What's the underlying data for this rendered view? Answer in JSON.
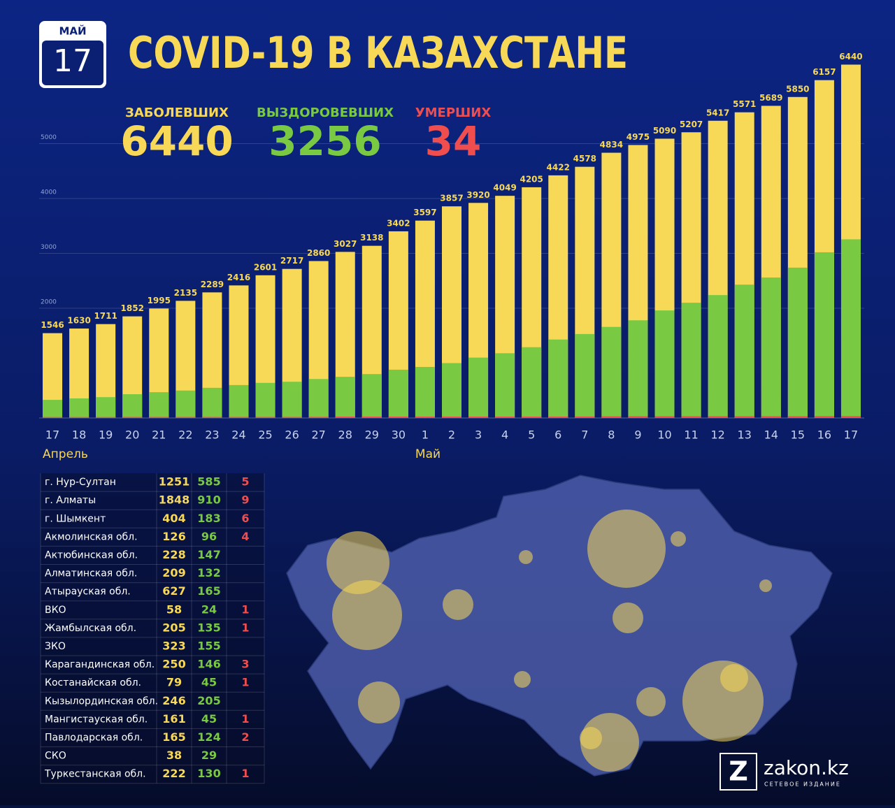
{
  "badge": {
    "month": "МАЙ",
    "day": "17"
  },
  "chart_data": {
    "type": "bar",
    "bar_mode": "overlap",
    "title": "COVID-19 В КАЗАХСТАНЕ",
    "categories": [
      "17",
      "18",
      "19",
      "20",
      "21",
      "22",
      "23",
      "24",
      "25",
      "26",
      "27",
      "28",
      "29",
      "30",
      "1",
      "2",
      "3",
      "4",
      "5",
      "6",
      "7",
      "8",
      "9",
      "10",
      "11",
      "12",
      "13",
      "14",
      "15",
      "16",
      "17"
    ],
    "month_labels": [
      "Апрель",
      "Май"
    ],
    "series": [
      {
        "name": "ЗАБОЛЕВШИХ",
        "color": "#f8d857",
        "data_labels": true,
        "values": [
          1546,
          1630,
          1711,
          1852,
          1995,
          2135,
          2289,
          2416,
          2601,
          2717,
          2860,
          3027,
          3138,
          3402,
          3597,
          3857,
          3920,
          4049,
          4205,
          4422,
          4578,
          4834,
          4975,
          5090,
          5207,
          5417,
          5571,
          5689,
          5850,
          6157,
          6440
        ]
      },
      {
        "name": "ВЫЗДОРОВЕВШИХ",
        "color": "#7ac943",
        "values": [
          330,
          357,
          380,
          433,
          470,
          500,
          550,
          600,
          640,
          660,
          710,
          750,
          800,
          880,
          930,
          1000,
          1100,
          1180,
          1290,
          1430,
          1530,
          1660,
          1780,
          1960,
          2100,
          2240,
          2430,
          2560,
          2740,
          3020,
          3256
        ]
      },
      {
        "name": "УМЕРШИХ",
        "color": "#f04e4e",
        "values": [
          17,
          17,
          17,
          19,
          19,
          19,
          19,
          19,
          19,
          19,
          21,
          25,
          25,
          25,
          25,
          25,
          25,
          25,
          25,
          25,
          27,
          30,
          31,
          31,
          31,
          31,
          32,
          32,
          32,
          34,
          34
        ]
      }
    ],
    "ylim": [
      0,
      7000
    ],
    "yticks": [
      2000,
      3000,
      4000,
      5000
    ],
    "grid": true
  },
  "table": {
    "rows": [
      [
        "г. Нур-Султан",
        1251,
        585,
        5
      ],
      [
        "г. Алматы",
        1848,
        910,
        9
      ],
      [
        "г. Шымкент",
        404,
        183,
        6
      ],
      [
        "Акмолинская обл.",
        126,
        96,
        4
      ],
      [
        "Актюбинская обл.",
        228,
        147,
        null
      ],
      [
        "Алматинская обл.",
        209,
        132,
        null
      ],
      [
        "Атырауская обл.",
        627,
        165,
        null
      ],
      [
        "ВКО",
        58,
        24,
        1
      ],
      [
        "Жамбылская обл.",
        205,
        135,
        1
      ],
      [
        "ЗКО",
        323,
        155,
        null
      ],
      [
        "Карагандинская обл.",
        250,
        146,
        3
      ],
      [
        "Костанайская обл.",
        79,
        45,
        1
      ],
      [
        "Кызылординская обл.",
        246,
        205,
        null
      ],
      [
        "Мангистауская обл.",
        161,
        45,
        1
      ],
      [
        "Павлодарская обл.",
        165,
        124,
        2
      ],
      [
        "СКО",
        38,
        29,
        null
      ],
      [
        "Туркестанская обл.",
        222,
        130,
        1
      ]
    ]
  },
  "logo": {
    "letter": "Z",
    "name": "zakon.kz",
    "tagline": "СЕТЕВОЕ ИЗДАНИЕ"
  }
}
